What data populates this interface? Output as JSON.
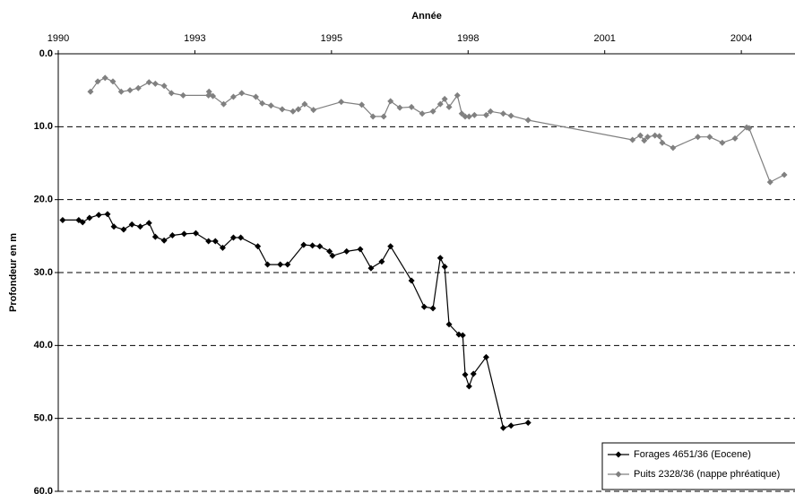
{
  "chart_data": {
    "type": "line",
    "x_label": "Année",
    "y_label": "Profondeur en m",
    "xlim": [
      1990.2,
      2005.3
    ],
    "xticks": [
      {
        "value": 1990.2,
        "label": "1990"
      },
      {
        "value": 1993.0,
        "label": "1993"
      },
      {
        "value": 1995.8,
        "label": "1995"
      },
      {
        "value": 1998.6,
        "label": "1998"
      },
      {
        "value": 2001.4,
        "label": "2001"
      },
      {
        "value": 2004.2,
        "label": "2004"
      }
    ],
    "ylim": [
      0,
      60
    ],
    "y_inverted": true,
    "yticks": [
      {
        "value": 0,
        "label": "0.0"
      },
      {
        "value": 10,
        "label": "10.0"
      },
      {
        "value": 20,
        "label": "20.0"
      },
      {
        "value": 30,
        "label": "30.0"
      },
      {
        "value": 40,
        "label": "40.0"
      },
      {
        "value": 50,
        "label": "50.0"
      },
      {
        "value": 60,
        "label": "60.0"
      }
    ],
    "grid": true,
    "legend": "lower right",
    "series": [
      {
        "name": "Forages 4651/36 (Eocene)",
        "color": "#000000",
        "x": [
          1990.29,
          1990.62,
          1990.7,
          1990.84,
          1991.03,
          1991.21,
          1991.34,
          1991.54,
          1991.71,
          1991.88,
          1992.06,
          1992.19,
          1992.37,
          1992.54,
          1992.78,
          1993.02,
          1993.28,
          1993.42,
          1993.57,
          1993.79,
          1993.94,
          1994.29,
          1994.49,
          1994.75,
          1994.9,
          1995.23,
          1995.41,
          1995.56,
          1995.76,
          1995.82,
          1996.11,
          1996.39,
          1996.61,
          1996.83,
          1997.01,
          1997.44,
          1997.7,
          1997.88,
          1998.03,
          1998.12,
          1998.21,
          1998.41,
          1998.49,
          1998.54,
          1998.62,
          1998.71,
          1998.97,
          1999.32,
          1999.48,
          1999.83
        ],
        "values": [
          22.8,
          22.8,
          23.1,
          22.5,
          22.1,
          22.0,
          23.7,
          24.1,
          23.4,
          23.7,
          23.2,
          25.1,
          25.6,
          24.9,
          24.7,
          24.6,
          25.7,
          25.7,
          26.6,
          25.2,
          25.2,
          26.4,
          28.9,
          28.9,
          28.9,
          26.2,
          26.3,
          26.4,
          27.1,
          27.7,
          27.1,
          26.8,
          29.4,
          28.5,
          26.4,
          31.1,
          34.7,
          34.9,
          28.0,
          29.2,
          37.1,
          38.5,
          38.6,
          44.0,
          45.6,
          43.9,
          41.6,
          51.3,
          51.0,
          50.6
        ]
      },
      {
        "name": "Puits 2328/36 (nappe phréatique)",
        "color": "#808080",
        "x": [
          1990.86,
          1991.01,
          1991.16,
          1991.32,
          1991.49,
          1991.67,
          1991.84,
          1992.06,
          1992.19,
          1992.37,
          1992.52,
          1992.76,
          1993.28,
          1993.29,
          1993.37,
          1993.59,
          1993.79,
          1993.96,
          1994.25,
          1994.38,
          1994.56,
          1994.79,
          1995.01,
          1995.12,
          1995.25,
          1995.43,
          1996.0,
          1996.42,
          1996.65,
          1996.87,
          1997.01,
          1997.2,
          1997.44,
          1997.66,
          1997.88,
          1998.03,
          1998.12,
          1998.21,
          1998.38,
          1998.47,
          1998.54,
          1998.62,
          1998.73,
          1998.97,
          1999.06,
          1999.32,
          1999.48,
          1999.83,
          2001.97,
          2002.13,
          2002.21,
          2002.28,
          2002.43,
          2002.52,
          2002.58,
          2002.8,
          2003.31,
          2003.55,
          2003.81,
          2004.07,
          2004.31,
          2004.36,
          2004.79,
          2005.08
        ],
        "values": [
          5.2,
          3.8,
          3.3,
          3.8,
          5.2,
          5.0,
          4.7,
          3.9,
          4.1,
          4.4,
          5.4,
          5.7,
          5.7,
          5.2,
          5.8,
          6.9,
          5.9,
          5.4,
          5.9,
          6.8,
          7.1,
          7.6,
          7.9,
          7.6,
          6.9,
          7.7,
          6.6,
          7.0,
          8.6,
          8.6,
          6.5,
          7.4,
          7.3,
          8.2,
          7.9,
          6.9,
          6.2,
          7.3,
          5.7,
          8.2,
          8.6,
          8.6,
          8.4,
          8.4,
          7.9,
          8.2,
          8.5,
          9.1,
          11.8,
          11.2,
          11.9,
          11.4,
          11.2,
          11.3,
          12.2,
          12.9,
          11.4,
          11.4,
          12.2,
          11.6,
          10.1,
          10.2,
          17.6,
          16.6
        ]
      }
    ]
  }
}
